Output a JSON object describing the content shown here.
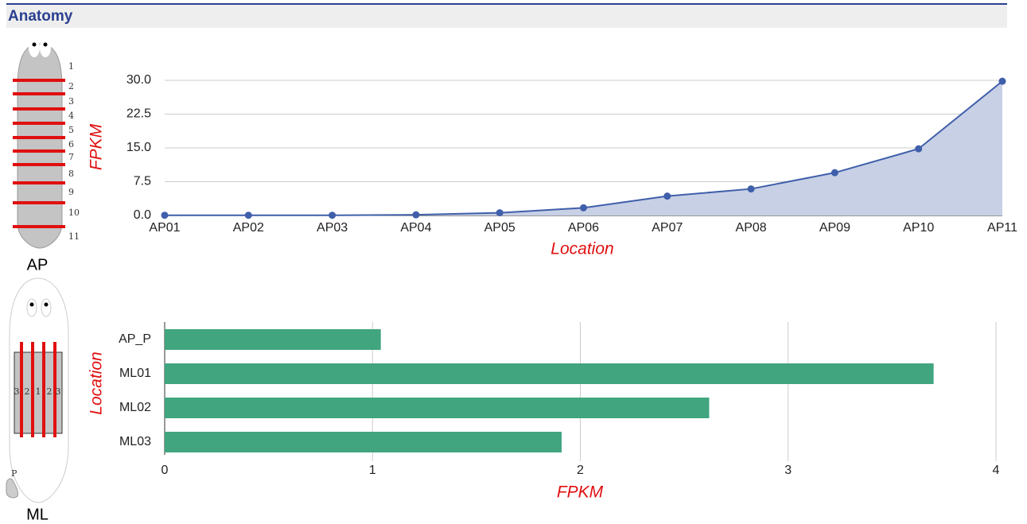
{
  "header": {
    "title": "Anatomy"
  },
  "diagrams": {
    "ap": {
      "label": "AP",
      "sections": [
        "1",
        "2",
        "3",
        "4",
        "5",
        "6",
        "7",
        "8",
        "9",
        "10",
        "11"
      ]
    },
    "ml": {
      "label": "ML",
      "sections": [
        "3",
        "2",
        "1",
        "2",
        "3"
      ],
      "marker": "P"
    }
  },
  "chart_data": [
    {
      "type": "line",
      "xlabel": "Location",
      "ylabel": "FPKM",
      "categories": [
        "AP01",
        "AP02",
        "AP03",
        "AP04",
        "AP05",
        "AP06",
        "AP07",
        "AP08",
        "AP09",
        "AP10",
        "AP11"
      ],
      "values": [
        0.05,
        0.05,
        0.05,
        0.15,
        0.6,
        1.7,
        4.3,
        5.9,
        9.5,
        14.8,
        29.8
      ],
      "color": "#3f5faa",
      "area_color": "#c8d0e6",
      "ylim": [
        0,
        30
      ],
      "yticks": [
        {
          "value": 0,
          "label": "0.0"
        },
        7.5,
        {
          "value": 15,
          "label": "15.0"
        },
        22.5,
        {
          "value": 30,
          "label": "30.0"
        }
      ],
      "grid": true
    },
    {
      "type": "barh",
      "xlabel": "FPKM",
      "ylabel": "Location",
      "categories": [
        "AP_P",
        "ML01",
        "ML02",
        "ML03"
      ],
      "values": [
        1.04,
        3.7,
        2.62,
        1.91
      ],
      "color": "#41a57f",
      "xlim": [
        0,
        4
      ],
      "xticks": [
        0,
        1,
        2,
        3,
        4
      ],
      "grid": true
    }
  ]
}
